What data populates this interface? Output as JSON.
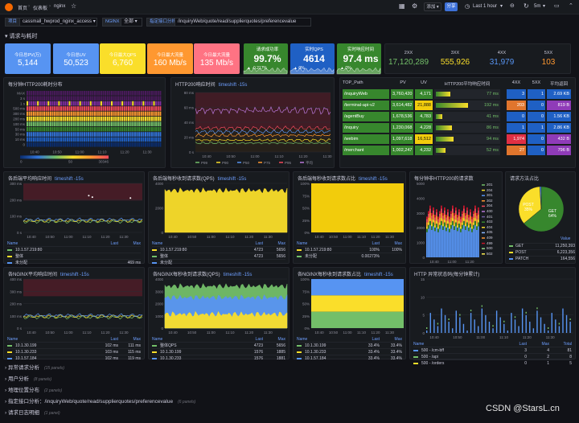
{
  "topbar": {
    "breadcrumb": [
      "首页",
      "仪表板",
      "nginx"
    ],
    "add_label": "添加",
    "share_label": "分享",
    "time_range": "Last 1 hour",
    "refresh": "5m"
  },
  "variables": [
    {
      "label": "项目",
      "value": "cassmall_hwprod_nginx_access"
    },
    {
      "label": "NGINX",
      "value": "全部"
    },
    {
      "label": "指定接口分析",
      "value": "/inquiryWeb/quote/read/supplierquotes/preferencevalue"
    }
  ],
  "row_title": "请求与耗时",
  "stats": [
    {
      "title": "今日总PV(万)",
      "value": "5,144",
      "color": "#5794f2"
    },
    {
      "title": "今日总UV",
      "value": "50,523",
      "color": "#5794f2"
    },
    {
      "title": "今日最大QPS",
      "value": "6,760",
      "color": "#fade2a"
    },
    {
      "title": "今日最大流量",
      "value": "160 Mb/s",
      "color": "#ff9830"
    },
    {
      "title": "今日最大流量",
      "value": "135 Mb/s",
      "color": "#ff7383"
    }
  ],
  "stats2": [
    {
      "title": "请求成功率",
      "value": "99.7%",
      "sub": "▲ -0.217%",
      "color": "#37872d"
    },
    {
      "title": "实时QPS",
      "value": "4614",
      "sub": "▲ 0%",
      "color": "#1f60c4"
    },
    {
      "title": "实时响应时间",
      "value": "97.4 ms",
      "sub": "▲ 0%",
      "color": "#37872d"
    }
  ],
  "codes": [
    {
      "label": "2XX",
      "value": "17,120,289",
      "color": "#73bf69"
    },
    {
      "label": "3XX",
      "value": "555,926",
      "color": "#fade2a"
    },
    {
      "label": "4XX",
      "value": "31,979",
      "color": "#5794f2"
    },
    {
      "label": "5XX",
      "value": "103",
      "color": "#ff9830"
    }
  ],
  "heatmap_panel": {
    "title": "每分钟HTTP200耗时分布",
    "rows": [
      "MAX",
      "3 s",
      "1 s",
      "500 ms",
      "300 ms",
      "200 ms",
      "100 ms",
      "50 ms",
      "30 ms",
      "10 ms",
      "0"
    ],
    "xticks": [
      "10:40",
      "10:50",
      "11:00",
      "11:10",
      "11:20",
      "11:30"
    ],
    "scale": [
      "0",
      "50",
      "30346"
    ]
  },
  "resp_panel": {
    "title": "HTTP200响应时间",
    "ts": "timeshift -15s",
    "yticks": [
      "80 ms",
      "60 ms",
      "40 ms",
      "20 ms",
      "0 s"
    ],
    "xticks": [
      "10:40",
      "10:50",
      "11:00",
      "11:10",
      "11:20",
      "11:30"
    ],
    "legend": [
      "P99",
      "P90",
      "P50",
      "P75",
      "P95",
      "平均"
    ]
  },
  "top_table": {
    "headers": [
      "TOP_Path",
      "PV",
      "UV",
      "HTTP200平均响应时间",
      "4XX",
      "5XX",
      "平均返回"
    ],
    "rows": [
      {
        "path": "/inquiryWeb",
        "pv": "3,760,420",
        "uv": "4,171",
        "rt": "77 ms",
        "x4": "3",
        "x5": "1",
        "ret": "2.69 KB",
        "fill": 0.45,
        "x4c": "#1f60c4",
        "x5c": "#1f60c4",
        "rc": "#1f60c4"
      },
      {
        "path": "/terminal-api-v2",
        "pv": "3,614,482",
        "uv": "21,888",
        "rt": "192 ms",
        "x4": "203",
        "x5": "0",
        "ret": "819 B",
        "fill": 1.0,
        "x4c": "#e0752d",
        "x5c": "#1f60c4",
        "rc": "#8f3bb8"
      },
      {
        "path": "/agentBuy",
        "pv": "1,678,536",
        "uv": "4,783",
        "rt": "41 ms",
        "x4": "0",
        "x5": "0",
        "ret": "1.56 KB",
        "fill": 0.2,
        "x4c": "#1f60c4",
        "x5c": "#1f60c4",
        "rc": "#1f60c4"
      },
      {
        "path": "/inquiry",
        "pv": "1,230,068",
        "uv": "4,228",
        "rt": "86 ms",
        "x4": "1",
        "x5": "1",
        "ret": "2.86 KB",
        "fill": 0.5,
        "x4c": "#1f60c4",
        "x5c": "#1f60c4",
        "rc": "#1f60c4"
      },
      {
        "path": "/webim",
        "pv": "1,097,618",
        "uv": "16,512",
        "rt": "94 ms",
        "x4": "1,974",
        "x5": "0",
        "ret": "432 B",
        "fill": 0.55,
        "x4c": "#e02f44",
        "x5c": "#1f60c4",
        "rc": "#8f3bb8"
      },
      {
        "path": "/merchant",
        "pv": "1,002,247",
        "uv": "4,232",
        "rt": "52 ms",
        "x4": "27",
        "x5": "0",
        "ret": "796 B",
        "fill": 0.3,
        "x4c": "#e0752d",
        "x5c": "#1f60c4",
        "rc": "#8f3bb8"
      }
    ]
  },
  "row2": [
    {
      "title": "各后端平均响应时间",
      "ts": "timeshift -15s",
      "yticks": [
        "300 ms",
        "200 ms",
        "100 ms",
        "0 s"
      ],
      "xticks": [
        "10:40",
        "10:50",
        "11:00",
        "11:10",
        "11:20",
        "11:30"
      ],
      "lhead": [
        "Name",
        "Last",
        "Max"
      ],
      "legend": [
        {
          "name": "10.1.57.219:80",
          "last": "",
          "max": "",
          "c": "#73bf69"
        },
        {
          "name": "整体",
          "last": "",
          "max": "",
          "c": "#fade2a"
        },
        {
          "name": "未分配",
          "last": "",
          "max": "469 ms",
          "c": "#5794f2"
        }
      ]
    },
    {
      "title": "各后端每秒收到请求数(QPS)",
      "ts": "timeshift -15s",
      "yticks": [
        "4000",
        "2000",
        "0"
      ],
      "xticks": [
        "10:40",
        "10:50",
        "11:00",
        "11:10",
        "11:20",
        "11:30"
      ],
      "lhead": [
        "Name",
        "Last",
        "Max"
      ],
      "legend": [
        {
          "name": "10.1.57.219:80",
          "last": "4723",
          "max": "5656",
          "c": "#fade2a"
        },
        {
          "name": "整体",
          "last": "4723",
          "max": "5656",
          "c": "#73bf69"
        },
        {
          "name": "未分配",
          "last": "",
          "max": "",
          "c": "#5794f2"
        }
      ]
    },
    {
      "title": "各后端每秒收到请求数占比",
      "ts": "timeshift -15s",
      "yticks": [
        "100%",
        "75%",
        "50%",
        "25%",
        "0%"
      ],
      "xticks": [
        "10:40",
        "10:50",
        "11:00",
        "11:10",
        "11:20",
        "11:30"
      ],
      "lhead": [
        "Name",
        "Last",
        "Max"
      ],
      "legend": [
        {
          "name": "10.1.57.219:80",
          "last": "100%",
          "max": "100%",
          "c": "#fade2a"
        },
        {
          "name": "未分配",
          "last": "0.00273%",
          "max": "",
          "c": "#73bf69"
        }
      ]
    },
    {
      "title": "每分钟非HTTP200的请求数",
      "yticks": [
        "5000",
        "4000",
        "3000",
        "2000",
        "1000",
        "0"
      ],
      "xticks": [
        "10:40",
        "11:00",
        "11:20"
      ],
      "codes": [
        {
          "c": "201",
          "color": "#73bf69"
        },
        {
          "c": "204",
          "color": "#fade2a"
        },
        {
          "c": "301",
          "color": "#5794f2"
        },
        {
          "c": "302",
          "color": "#ff9830"
        },
        {
          "c": "304",
          "color": "#f2495c"
        },
        {
          "c": "400",
          "color": "#b877d9"
        },
        {
          "c": "401",
          "color": "#705da0"
        },
        {
          "c": "403",
          "color": "#37872d"
        },
        {
          "c": "404",
          "color": "#fade2a"
        },
        {
          "c": "405",
          "color": "#8ab8ff"
        },
        {
          "c": "409",
          "color": "#ff9830"
        },
        {
          "c": "499",
          "color": "#c4162a"
        },
        {
          "c": "500",
          "color": "#96d98d"
        },
        {
          "c": "502",
          "color": "#ffee52"
        }
      ]
    },
    {
      "title": "请求方法占比",
      "slices": [
        {
          "name": "GET",
          "pct": 64,
          "color": "#37872d"
        },
        {
          "name": "POST",
          "pct": 35,
          "color": "#fade2a"
        },
        {
          "name": "PATCH",
          "pct": 1,
          "color": "#5794f2"
        }
      ],
      "slice_labels": [
        "POST\n35%",
        "GET\n64%"
      ],
      "lhead": "Value",
      "legend": [
        {
          "name": "GET",
          "value": "11,250,393",
          "c": "#73bf69"
        },
        {
          "name": "POST",
          "value": "6,223,356",
          "c": "#fade2a"
        },
        {
          "name": "PATCH",
          "value": "164,556",
          "c": "#5794f2"
        }
      ]
    }
  ],
  "row3": [
    {
      "title": "各NGINX平均响应时间",
      "ts": "timeshift -15s",
      "yticks": [
        "400 ms",
        "300 ms",
        "200 ms",
        "100 ms",
        "0 s"
      ],
      "xticks": [
        "10:40",
        "10:50",
        "11:00",
        "11:10",
        "11:20",
        "11:30"
      ],
      "lhead": [
        "Name",
        "Last",
        "Max"
      ],
      "legend": [
        {
          "name": "10.1.30.199",
          "last": "102 ms",
          "max": "111 ms",
          "c": "#73bf69"
        },
        {
          "name": "10.1.30.233",
          "last": "103 ms",
          "max": "115 ms",
          "c": "#fade2a"
        },
        {
          "name": "10.1.57.184",
          "last": "102 ms",
          "max": "119 ms",
          "c": "#5794f2"
        }
      ]
    },
    {
      "title": "各NGINX每秒收到请求数(QPS)",
      "ts": "timeshift -15s",
      "yticks": [
        "4000",
        "3000",
        "2000",
        "1000",
        "0"
      ],
      "xticks": [
        "10:40",
        "10:50",
        "11:00",
        "11:10",
        "11:20",
        "11:30"
      ],
      "lhead": [
        "Name",
        "Last",
        "Max"
      ],
      "legend": [
        {
          "name": "整体QPS",
          "last": "4723",
          "max": "5656",
          "c": "#73bf69"
        },
        {
          "name": "10.1.30.199",
          "last": "1576",
          "max": "1885",
          "c": "#fade2a"
        },
        {
          "name": "10.1.30.233",
          "last": "1576",
          "max": "1881",
          "c": "#5794f2"
        }
      ]
    },
    {
      "title": "各NGINX每秒收到请求数占比",
      "ts": "timeshift -15s",
      "yticks": [
        "100%",
        "75%",
        "50%",
        "25%",
        "0%"
      ],
      "xticks": [
        "10:40",
        "10:50",
        "11:00",
        "11:10",
        "11:20",
        "11:30"
      ],
      "lhead": [
        "Name",
        "Last",
        "Max"
      ],
      "legend": [
        {
          "name": "10.1.30.199",
          "last": "33.4%",
          "max": "33.4%",
          "c": "#73bf69"
        },
        {
          "name": "10.1.30.233",
          "last": "33.4%",
          "max": "33.4%",
          "c": "#fade2a"
        },
        {
          "name": "10.1.57.184",
          "last": "33.4%",
          "max": "33.4%",
          "c": "#5794f2"
        }
      ]
    },
    {
      "title": "HTTP 异常状态码(每分钟累计)",
      "yticks": [
        "15",
        "10",
        "5",
        "0"
      ],
      "xticks": [
        "10:40",
        "10:50",
        "11:00",
        "11:10",
        "11:20",
        "11:30"
      ],
      "lhead": [
        "Name",
        "Last",
        "Max",
        "Total"
      ],
      "legend": [
        {
          "name": "500 - /cm-bff",
          "last": "3",
          "max": "4",
          "tot": "81",
          "c": "#5794f2"
        },
        {
          "name": "500 - /api",
          "last": "0",
          "max": "2",
          "tot": "8",
          "c": "#73bf69"
        },
        {
          "name": "500 - /orders",
          "last": "0",
          "max": "1",
          "tot": "5",
          "c": "#fade2a"
        }
      ]
    }
  ],
  "collapsed_rows": [
    {
      "title": "异常请求分析",
      "count": "(15 panels)"
    },
    {
      "title": "用户分析",
      "count": "(8 panels)"
    },
    {
      "title": "地理位置分布",
      "count": "(2 panels)"
    },
    {
      "title": "指定接口分析：/inquiryWeb/quote/read/supplierquotes/preferencevalue",
      "count": "(6 panels)"
    },
    {
      "title": "请求日志明细",
      "count": "(1 panel)"
    }
  ],
  "watermark": "CSDN @StarsL.cn"
}
